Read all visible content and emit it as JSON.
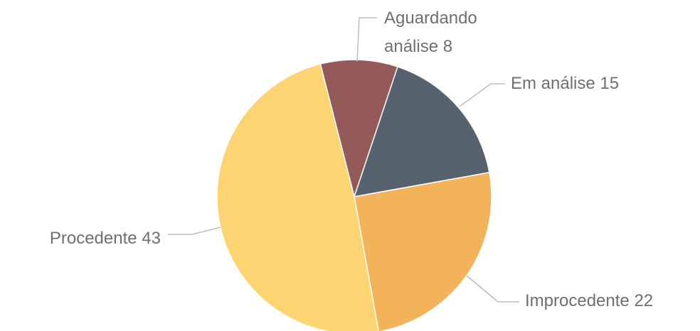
{
  "chart_data": {
    "type": "pie",
    "categories": [
      "Aguardando análise",
      "Em análise",
      "Improcedente",
      "Procedente"
    ],
    "values": [
      8,
      15,
      22,
      43
    ],
    "colors": [
      "#945a5a",
      "#56636e",
      "#f2b35b",
      "#fdd472"
    ]
  }
}
